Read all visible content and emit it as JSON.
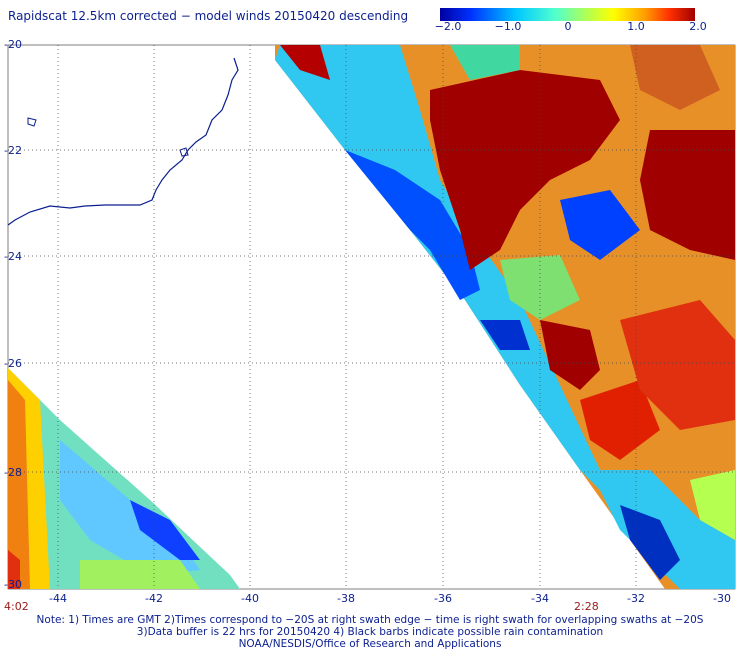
{
  "title": "Rapidscat 12.5km corrected − model winds 20150420 descending",
  "colorbar": {
    "ticks": [
      "−2.0",
      "−1.0",
      "0",
      "1.0",
      "2.0"
    ],
    "min": -2.0,
    "max": 2.0,
    "colors": [
      "#0000a0",
      "#0030ff",
      "#00c8ff",
      "#50ffd0",
      "#b4ff50",
      "#ffff00",
      "#ffa000",
      "#ff3000",
      "#a00000"
    ]
  },
  "axes": {
    "lat_ticks": [
      "-20",
      "-22",
      "-24",
      "-26",
      "-28",
      "-30"
    ],
    "lon_ticks": [
      "-44",
      "-42",
      "-40",
      "-38",
      "-36",
      "-34",
      "-32",
      "-30"
    ]
  },
  "swath_times": [
    "4:02",
    "2:28"
  ],
  "notes": [
    "Note: 1) Times are GMT 2)Times correspond to −20S at right swath edge − time is right swath for overlapping swaths at −20S",
    "3)Data buffer is 22 hrs for 20150420 4) Black barbs indicate possible rain contamination",
    "NOAA/NESDIS/Office of Research and Applications"
  ]
}
